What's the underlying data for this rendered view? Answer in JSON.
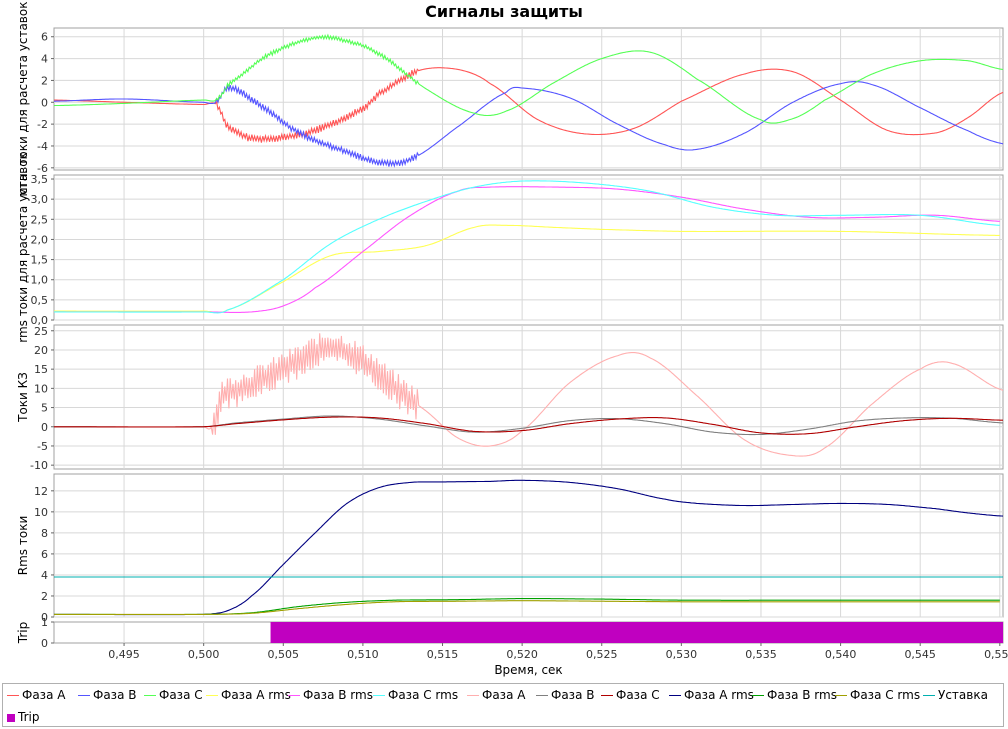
{
  "title": "Сигналы защиты",
  "xlabel": "Время, сек",
  "x_ticks": [
    "0,495",
    "0,500",
    "0,505",
    "0,510",
    "0,515",
    "0,520",
    "0,525",
    "0,530",
    "0,535",
    "0,540",
    "0,545",
    "0,550"
  ],
  "x_tick_values": [
    0.495,
    0.5,
    0.505,
    0.51,
    0.515,
    0.52,
    0.525,
    0.53,
    0.535,
    0.54,
    0.545,
    0.55
  ],
  "xlim": [
    0.4906,
    0.5502
  ],
  "colors": {
    "phase_a": "#ff5555",
    "phase_b": "#5555ff",
    "phase_c": "#55ff55",
    "a_rms": "#ffff55",
    "b_rms": "#ff55ff",
    "c_rms": "#55ffff",
    "kz_a": "#ffafaf",
    "kz_b": "#808080",
    "kz_c": "#b00000",
    "rms_a": "#000080",
    "rms_b": "#00a000",
    "rms_c": "#a0a000",
    "setpoint": "#00b0b0",
    "trip": "#c000c0"
  },
  "legend": [
    {
      "label": "Фаза A",
      "color": "#ff5555",
      "kind": "line"
    },
    {
      "label": "Фаза B",
      "color": "#5555ff",
      "kind": "line"
    },
    {
      "label": "Фаза C",
      "color": "#55ff55",
      "kind": "line"
    },
    {
      "label": "Фаза A rms",
      "color": "#ffff55",
      "kind": "line"
    },
    {
      "label": "Фаза B rms",
      "color": "#ff55ff",
      "kind": "line"
    },
    {
      "label": "Фаза C rms",
      "color": "#55ffff",
      "kind": "line"
    },
    {
      "label": "Фаза A",
      "color": "#ffafaf",
      "kind": "line"
    },
    {
      "label": "Фаза B",
      "color": "#808080",
      "kind": "line"
    },
    {
      "label": "Фаза C",
      "color": "#b00000",
      "kind": "line"
    },
    {
      "label": "Фаза A rms",
      "color": "#000080",
      "kind": "line"
    },
    {
      "label": "Фаза B rms",
      "color": "#00a000",
      "kind": "line"
    },
    {
      "label": "Фаза C rms",
      "color": "#a0a000",
      "kind": "line"
    },
    {
      "label": "Уставка",
      "color": "#00b0b0",
      "kind": "line"
    },
    {
      "label": "Trip",
      "color": "#c000c0",
      "kind": "box"
    }
  ],
  "chart_data": [
    {
      "type": "line",
      "ylabel": "мгн. токи для расчета уставок",
      "ylim": [
        -6.2,
        6.8
      ],
      "y_ticks": [
        "-6",
        "-4",
        "-2",
        "0",
        "2",
        "4",
        "6"
      ],
      "y_tick_values": [
        -6,
        -4,
        -2,
        0,
        2,
        4,
        6
      ],
      "series": [
        {
          "name": "Фаза A",
          "color": "#ff5555",
          "noise": 0.35,
          "noise_range": [
            0.5008,
            0.5135
          ],
          "x": [
            0.4906,
            0.495,
            0.5,
            0.5008,
            0.5015,
            0.503,
            0.506,
            0.508,
            0.51,
            0.511,
            0.5135,
            0.516,
            0.518,
            0.521,
            0.524,
            0.527,
            0.53,
            0.534,
            0.537,
            0.54,
            0.543,
            0.546,
            0.548,
            0.5502
          ],
          "y": [
            0.2,
            0.0,
            -0.2,
            -0.2,
            -2.2,
            -3.3,
            -3.0,
            -2.0,
            -0.6,
            0.8,
            2.9,
            3.0,
            1.7,
            -1.6,
            -2.9,
            -2.4,
            0.1,
            2.6,
            2.8,
            0.2,
            -2.6,
            -2.8,
            -1.4,
            0.9
          ]
        },
        {
          "name": "Фаза B",
          "color": "#5555ff",
          "noise": 0.3,
          "noise_range": [
            0.5008,
            0.5135
          ],
          "x": [
            0.4906,
            0.495,
            0.5,
            0.5008,
            0.5015,
            0.503,
            0.506,
            0.509,
            0.511,
            0.513,
            0.516,
            0.519,
            0.52,
            0.523,
            0.526,
            0.529,
            0.531,
            0.534,
            0.537,
            0.54,
            0.542,
            0.545,
            0.548,
            0.5502
          ],
          "y": [
            0.1,
            0.3,
            0.0,
            0.0,
            1.3,
            0.2,
            -2.8,
            -4.5,
            -5.5,
            -5.2,
            -2.2,
            0.9,
            1.3,
            0.4,
            -2.0,
            -3.9,
            -4.3,
            -2.8,
            0.0,
            1.7,
            1.6,
            -0.5,
            -2.6,
            -3.8
          ]
        },
        {
          "name": "Фаза C",
          "color": "#55ff55",
          "noise": 0.2,
          "noise_range": [
            0.5008,
            0.5135
          ],
          "x": [
            0.4906,
            0.495,
            0.5,
            0.5008,
            0.5015,
            0.504,
            0.507,
            0.509,
            0.511,
            0.514,
            0.517,
            0.519,
            0.522,
            0.525,
            0.528,
            0.531,
            0.535,
            0.537,
            0.539,
            0.542,
            0.545,
            0.548,
            0.5502
          ],
          "y": [
            -0.3,
            -0.1,
            0.2,
            0.2,
            1.6,
            4.3,
            5.9,
            5.6,
            4.4,
            1.2,
            -1.0,
            -0.8,
            1.8,
            4.0,
            4.6,
            2.1,
            -1.6,
            -1.5,
            0.2,
            2.6,
            3.8,
            3.8,
            3.0
          ]
        }
      ]
    },
    {
      "type": "line",
      "ylabel": "rms токи для расчета уставок",
      "ylim": [
        0,
        3.6
      ],
      "y_ticks": [
        "0,0",
        "0,5",
        "1,0",
        "1,5",
        "2,0",
        "2,5",
        "3,0",
        "3,5"
      ],
      "y_tick_values": [
        0,
        0.5,
        1,
        1.5,
        2,
        2.5,
        3,
        3.5
      ],
      "series": [
        {
          "name": "Фаза A rms",
          "color": "#ffff55",
          "x": [
            0.4906,
            0.5,
            0.5015,
            0.505,
            0.508,
            0.511,
            0.514,
            0.517,
            0.519,
            0.522,
            0.525,
            0.53,
            0.54,
            0.55
          ],
          "y": [
            0.22,
            0.22,
            0.25,
            0.95,
            1.6,
            1.7,
            1.85,
            2.3,
            2.35,
            2.3,
            2.25,
            2.2,
            2.2,
            2.1
          ]
        },
        {
          "name": "Фаза B rms",
          "color": "#ff55ff",
          "x": [
            0.4906,
            0.5,
            0.503,
            0.505,
            0.507,
            0.51,
            0.513,
            0.516,
            0.518,
            0.522,
            0.526,
            0.53,
            0.534,
            0.538,
            0.542,
            0.546,
            0.55
          ],
          "y": [
            0.2,
            0.2,
            0.2,
            0.35,
            0.8,
            1.7,
            2.6,
            3.2,
            3.3,
            3.3,
            3.25,
            3.05,
            2.75,
            2.55,
            2.55,
            2.6,
            2.45
          ]
        },
        {
          "name": "Фаза C rms",
          "color": "#55ffff",
          "x": [
            0.4906,
            0.5,
            0.5015,
            0.505,
            0.508,
            0.511,
            0.514,
            0.517,
            0.52,
            0.524,
            0.528,
            0.532,
            0.536,
            0.54,
            0.545,
            0.55
          ],
          "y": [
            0.2,
            0.2,
            0.25,
            1.0,
            1.9,
            2.5,
            2.95,
            3.3,
            3.45,
            3.4,
            3.2,
            2.8,
            2.6,
            2.6,
            2.6,
            2.35
          ]
        }
      ]
    },
    {
      "type": "line",
      "ylabel": "Токи КЗ",
      "ylim": [
        -11,
        26.5
      ],
      "y_ticks": [
        "-10",
        "-5",
        "0",
        "5",
        "10",
        "15",
        "20",
        "25"
      ],
      "y_tick_values": [
        -10,
        -5,
        0,
        5,
        10,
        15,
        20,
        25
      ],
      "series": [
        {
          "name": "Фаза A",
          "color": "#ffafaf",
          "noise": 4.5,
          "noise_range": [
            0.5005,
            0.5135
          ],
          "x": [
            0.4906,
            0.495,
            0.5,
            0.5005,
            0.5012,
            0.503,
            0.506,
            0.508,
            0.51,
            0.512,
            0.514,
            0.516,
            0.518,
            0.52,
            0.523,
            0.526,
            0.528,
            0.531,
            0.534,
            0.537,
            0.539,
            0.542,
            0.545,
            0.547,
            0.5502
          ],
          "y": [
            0.0,
            0.0,
            0.0,
            0.0,
            8.0,
            11.0,
            17.0,
            20.5,
            17.0,
            10.0,
            4.0,
            -3.0,
            -5.0,
            -1.0,
            11.5,
            18.5,
            18.0,
            8.0,
            -3.5,
            -7.5,
            -5.5,
            6.0,
            15.0,
            16.5,
            9.5
          ]
        },
        {
          "name": "Фаза B",
          "color": "#808080",
          "x": [
            0.4906,
            0.5,
            0.502,
            0.505,
            0.508,
            0.511,
            0.514,
            0.517,
            0.52,
            0.523,
            0.526,
            0.529,
            0.532,
            0.535,
            0.538,
            0.541,
            0.544,
            0.547,
            0.5502
          ],
          "y": [
            0.0,
            0.0,
            1.0,
            2.0,
            2.8,
            2.0,
            0.2,
            -1.4,
            -0.4,
            1.6,
            2.1,
            0.8,
            -1.4,
            -2.0,
            -0.6,
            1.5,
            2.3,
            2.2,
            1.0
          ]
        },
        {
          "name": "Фаза C",
          "color": "#b00000",
          "x": [
            0.4906,
            0.5,
            0.502,
            0.505,
            0.508,
            0.511,
            0.514,
            0.517,
            0.52,
            0.523,
            0.526,
            0.529,
            0.532,
            0.535,
            0.538,
            0.541,
            0.544,
            0.547,
            0.5502
          ],
          "y": [
            0.0,
            0.0,
            0.8,
            1.8,
            2.5,
            2.3,
            0.8,
            -1.2,
            -1.0,
            0.8,
            2.0,
            2.3,
            0.6,
            -1.6,
            -1.8,
            0.0,
            1.6,
            2.2,
            1.7
          ]
        }
      ]
    },
    {
      "type": "line",
      "ylabel": "Rms токи",
      "ylim": [
        0,
        13.6
      ],
      "y_ticks": [
        "0",
        "2",
        "4",
        "6",
        "8",
        "10",
        "12"
      ],
      "y_tick_values": [
        0,
        2,
        4,
        6,
        8,
        10,
        12
      ],
      "series": [
        {
          "name": "Фаза A rms",
          "color": "#000080",
          "x": [
            0.4906,
            0.5,
            0.5015,
            0.503,
            0.505,
            0.507,
            0.509,
            0.511,
            0.513,
            0.515,
            0.518,
            0.52,
            0.523,
            0.526,
            0.529,
            0.531,
            0.534,
            0.537,
            0.54,
            0.543,
            0.546,
            0.548,
            0.5502
          ],
          "y": [
            0.25,
            0.25,
            0.6,
            2.0,
            5.0,
            8.0,
            10.8,
            12.3,
            12.8,
            12.85,
            12.9,
            13.0,
            12.8,
            12.2,
            11.2,
            10.8,
            10.6,
            10.7,
            10.8,
            10.7,
            10.3,
            9.9,
            9.6
          ]
        },
        {
          "name": "Фаза B rms",
          "color": "#00a000",
          "x": [
            0.4906,
            0.5,
            0.503,
            0.506,
            0.509,
            0.512,
            0.516,
            0.52,
            0.525,
            0.53,
            0.54,
            0.55
          ],
          "y": [
            0.25,
            0.25,
            0.4,
            1.0,
            1.4,
            1.6,
            1.65,
            1.75,
            1.7,
            1.6,
            1.6,
            1.6
          ]
        },
        {
          "name": "Фаза C rms",
          "color": "#a0a000",
          "x": [
            0.4906,
            0.5,
            0.503,
            0.506,
            0.509,
            0.512,
            0.516,
            0.52,
            0.525,
            0.53,
            0.54,
            0.55
          ],
          "y": [
            0.25,
            0.25,
            0.35,
            0.8,
            1.2,
            1.45,
            1.5,
            1.55,
            1.5,
            1.45,
            1.45,
            1.45
          ]
        },
        {
          "name": "Уставка",
          "color": "#00b0b0",
          "x": [
            0.4906,
            0.5502
          ],
          "y": [
            3.8,
            3.8
          ]
        }
      ]
    },
    {
      "type": "area",
      "ylabel": "Trip",
      "ylim": [
        0,
        1
      ],
      "y_ticks": [
        "0",
        "1"
      ],
      "y_tick_values": [
        0,
        1
      ],
      "series": [
        {
          "name": "Trip",
          "color": "#c000c0",
          "x": [
            0.4906,
            0.5042,
            0.5042,
            0.5502
          ],
          "y": [
            0,
            0,
            1,
            1
          ]
        }
      ]
    }
  ]
}
